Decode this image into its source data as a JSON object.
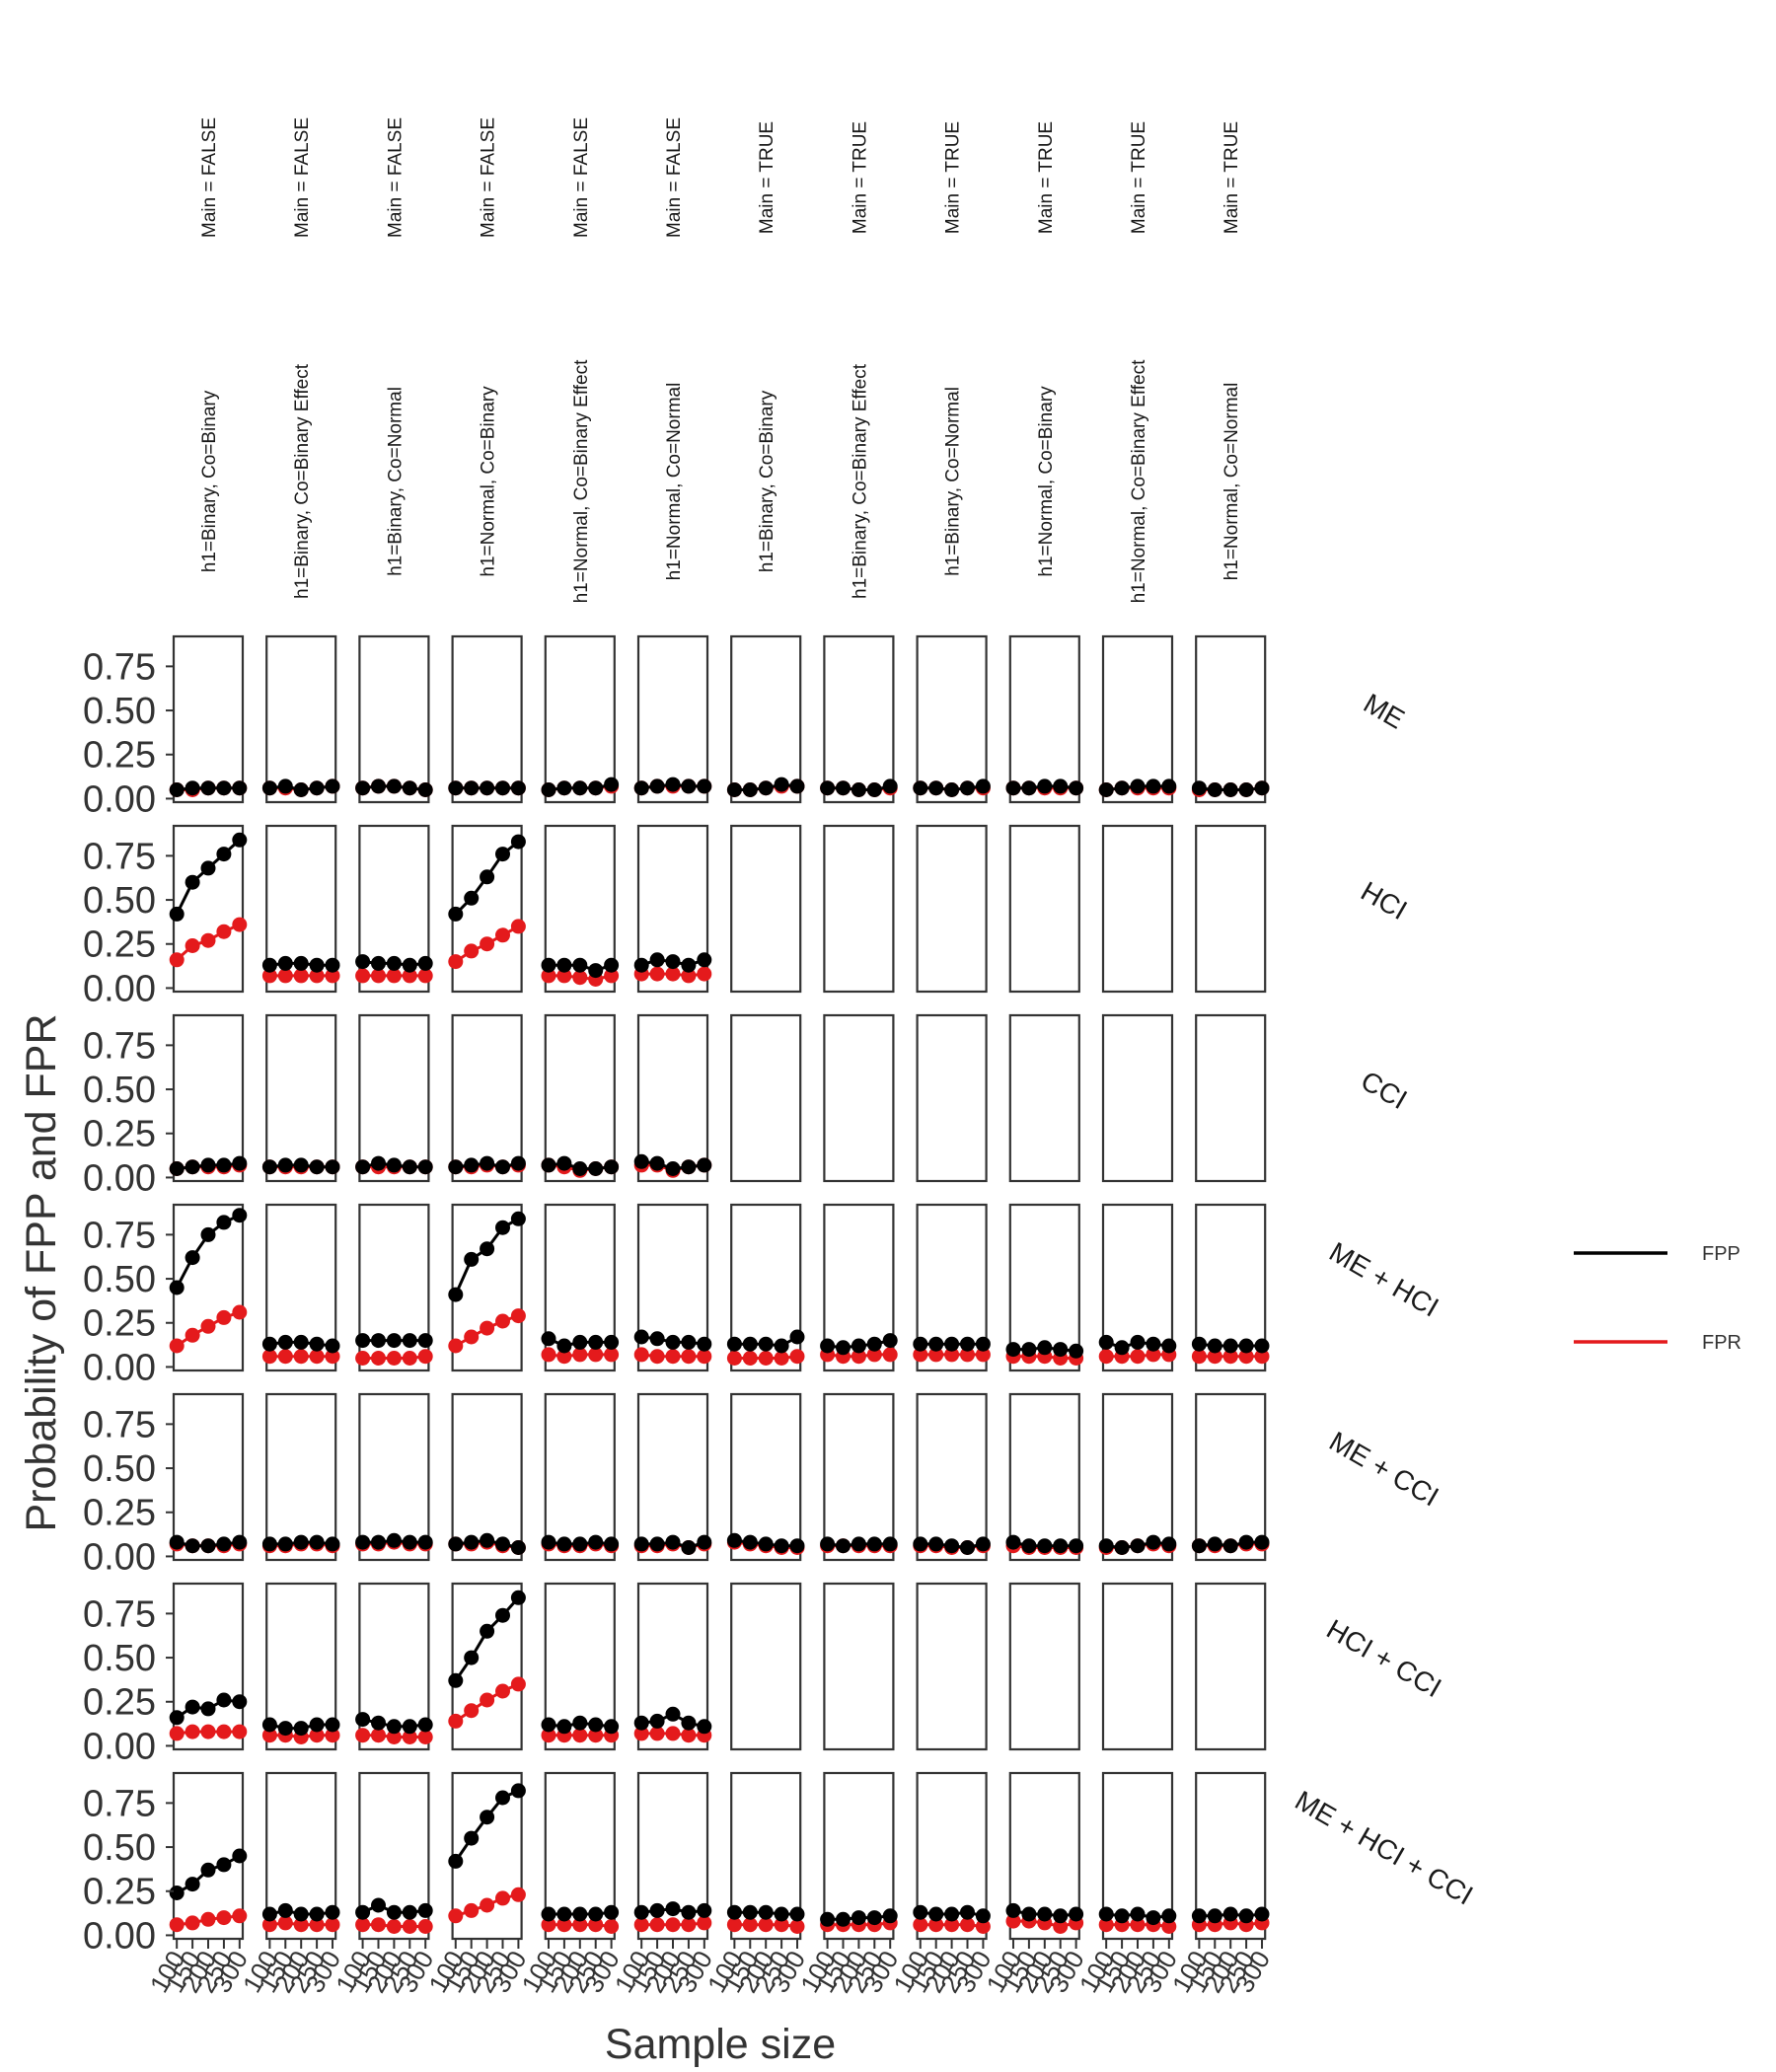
{
  "chart_data": {
    "type": "line",
    "xlabel": "Sample size",
    "ylabel": "Probability of FPP and FPR",
    "x_ticks": [
      100,
      150,
      200,
      250,
      300
    ],
    "x_tick_labels": [
      "100",
      "150",
      "200",
      "250",
      "300"
    ],
    "y_ticks": [
      0,
      0.25,
      0.5,
      0.75
    ],
    "y_tick_labels": [
      "0.00",
      "0.25",
      "0.50",
      "0.75"
    ],
    "xlim": [
      90,
      310
    ],
    "ylim": [
      -0.02,
      0.92
    ],
    "legend_position": "right",
    "legend": [
      {
        "name": "FPP",
        "color": "#000000"
      },
      {
        "name": "FPR",
        "color": "#e41a1c"
      }
    ],
    "col_facets_top": [
      "Main = FALSE",
      "Main = FALSE",
      "Main = FALSE",
      "Main = FALSE",
      "Main = FALSE",
      "Main = FALSE",
      "Main = TRUE",
      "Main = TRUE",
      "Main = TRUE",
      "Main = TRUE",
      "Main = TRUE",
      "Main = TRUE"
    ],
    "col_facets_bottom": [
      "h1=Binary, Co=Binary",
      "h1=Binary, Co=Binary Effect",
      "h1=Binary, Co=Normal",
      "h1=Normal, Co=Binary",
      "h1=Normal, Co=Binary Effect",
      "h1=Normal, Co=Normal",
      "h1=Binary, Co=Binary",
      "h1=Binary, Co=Binary Effect",
      "h1=Binary, Co=Normal",
      "h1=Normal, Co=Binary",
      "h1=Normal, Co=Binary Effect",
      "h1=Normal, Co=Normal"
    ],
    "row_facets": [
      "ME",
      "HCI",
      "CCI",
      "ME + HCI",
      "ME + CCI",
      "HCI + CCI",
      "ME + HCI + CCI"
    ],
    "x": [
      100,
      150,
      200,
      250,
      300
    ],
    "panels": [
      [
        {
          "FPP": [
            0.05,
            0.06,
            0.06,
            0.06,
            0.06
          ],
          "FPR": [
            0.05,
            0.05,
            0.06,
            0.06,
            0.06
          ]
        },
        {
          "FPP": [
            0.06,
            0.07,
            0.05,
            0.06,
            0.07
          ],
          "FPR": [
            0.06,
            0.06,
            0.05,
            0.06,
            0.07
          ]
        },
        {
          "FPP": [
            0.06,
            0.07,
            0.07,
            0.06,
            0.05
          ],
          "FPR": [
            0.06,
            0.07,
            0.07,
            0.06,
            0.05
          ]
        },
        {
          "FPP": [
            0.06,
            0.06,
            0.06,
            0.06,
            0.06
          ],
          "FPR": [
            0.06,
            0.06,
            0.06,
            0.06,
            0.06
          ]
        },
        {
          "FPP": [
            0.05,
            0.06,
            0.06,
            0.06,
            0.08
          ],
          "FPR": [
            0.05,
            0.06,
            0.06,
            0.06,
            0.07
          ]
        },
        {
          "FPP": [
            0.06,
            0.07,
            0.08,
            0.07,
            0.07
          ],
          "FPR": [
            0.06,
            0.07,
            0.07,
            0.07,
            0.07
          ]
        },
        {
          "FPP": [
            0.05,
            0.05,
            0.06,
            0.08,
            0.07
          ],
          "FPR": [
            0.05,
            0.05,
            0.06,
            0.07,
            0.07
          ]
        },
        {
          "FPP": [
            0.06,
            0.06,
            0.05,
            0.05,
            0.07
          ],
          "FPR": [
            0.06,
            0.06,
            0.05,
            0.05,
            0.06
          ]
        },
        {
          "FPP": [
            0.06,
            0.06,
            0.05,
            0.06,
            0.07
          ],
          "FPR": [
            0.06,
            0.06,
            0.05,
            0.06,
            0.06
          ]
        },
        {
          "FPP": [
            0.06,
            0.06,
            0.07,
            0.07,
            0.06
          ],
          "FPR": [
            0.06,
            0.06,
            0.06,
            0.06,
            0.06
          ]
        },
        {
          "FPP": [
            0.05,
            0.06,
            0.07,
            0.07,
            0.07
          ],
          "FPR": [
            0.05,
            0.06,
            0.06,
            0.06,
            0.06
          ]
        },
        {
          "FPP": [
            0.06,
            0.05,
            0.05,
            0.05,
            0.06
          ],
          "FPR": [
            0.05,
            0.05,
            0.05,
            0.05,
            0.06
          ]
        }
      ],
      [
        {
          "FPP": [
            0.42,
            0.6,
            0.68,
            0.76,
            0.84
          ],
          "FPR": [
            0.16,
            0.24,
            0.27,
            0.32,
            0.36
          ]
        },
        {
          "FPP": [
            0.13,
            0.14,
            0.14,
            0.13,
            0.13
          ],
          "FPR": [
            0.07,
            0.07,
            0.07,
            0.07,
            0.07
          ]
        },
        {
          "FPP": [
            0.15,
            0.14,
            0.14,
            0.13,
            0.14
          ],
          "FPR": [
            0.07,
            0.07,
            0.07,
            0.07,
            0.07
          ]
        },
        {
          "FPP": [
            0.42,
            0.51,
            0.63,
            0.76,
            0.83
          ],
          "FPR": [
            0.15,
            0.21,
            0.25,
            0.3,
            0.35
          ]
        },
        {
          "FPP": [
            0.13,
            0.13,
            0.13,
            0.1,
            0.13
          ],
          "FPR": [
            0.07,
            0.07,
            0.06,
            0.05,
            0.07
          ]
        },
        {
          "FPP": [
            0.13,
            0.16,
            0.15,
            0.13,
            0.16
          ],
          "FPR": [
            0.08,
            0.08,
            0.08,
            0.07,
            0.08
          ]
        },
        null,
        null,
        null,
        null,
        null,
        null
      ],
      [
        {
          "FPP": [
            0.05,
            0.06,
            0.07,
            0.07,
            0.08
          ],
          "FPR": [
            0.05,
            0.06,
            0.06,
            0.06,
            0.07
          ]
        },
        {
          "FPP": [
            0.06,
            0.07,
            0.07,
            0.06,
            0.06
          ],
          "FPR": [
            0.06,
            0.06,
            0.06,
            0.06,
            0.06
          ]
        },
        {
          "FPP": [
            0.06,
            0.08,
            0.07,
            0.06,
            0.06
          ],
          "FPR": [
            0.06,
            0.06,
            0.06,
            0.06,
            0.06
          ]
        },
        {
          "FPP": [
            0.06,
            0.07,
            0.08,
            0.06,
            0.08
          ],
          "FPR": [
            0.06,
            0.06,
            0.07,
            0.06,
            0.07
          ]
        },
        {
          "FPP": [
            0.07,
            0.08,
            0.05,
            0.05,
            0.06
          ],
          "FPR": [
            0.07,
            0.06,
            0.04,
            0.05,
            0.06
          ]
        },
        {
          "FPP": [
            0.09,
            0.08,
            0.05,
            0.06,
            0.07
          ],
          "FPR": [
            0.07,
            0.07,
            0.04,
            0.06,
            0.07
          ]
        },
        null,
        null,
        null,
        null,
        null,
        null
      ],
      [
        {
          "FPP": [
            0.45,
            0.62,
            0.75,
            0.82,
            0.86
          ],
          "FPR": [
            0.12,
            0.18,
            0.23,
            0.28,
            0.31
          ]
        },
        {
          "FPP": [
            0.13,
            0.14,
            0.14,
            0.13,
            0.12
          ],
          "FPR": [
            0.06,
            0.06,
            0.06,
            0.06,
            0.06
          ]
        },
        {
          "FPP": [
            0.15,
            0.15,
            0.15,
            0.15,
            0.15
          ],
          "FPR": [
            0.05,
            0.05,
            0.05,
            0.05,
            0.06
          ]
        },
        {
          "FPP": [
            0.41,
            0.61,
            0.67,
            0.79,
            0.84
          ],
          "FPR": [
            0.12,
            0.17,
            0.22,
            0.26,
            0.29
          ]
        },
        {
          "FPP": [
            0.16,
            0.12,
            0.14,
            0.14,
            0.14
          ],
          "FPR": [
            0.07,
            0.06,
            0.07,
            0.07,
            0.07
          ]
        },
        {
          "FPP": [
            0.17,
            0.16,
            0.14,
            0.14,
            0.13
          ],
          "FPR": [
            0.07,
            0.06,
            0.06,
            0.06,
            0.06
          ]
        },
        {
          "FPP": [
            0.13,
            0.13,
            0.13,
            0.12,
            0.17
          ],
          "FPR": [
            0.05,
            0.05,
            0.05,
            0.05,
            0.06
          ]
        },
        {
          "FPP": [
            0.12,
            0.11,
            0.12,
            0.13,
            0.15
          ],
          "FPR": [
            0.07,
            0.06,
            0.06,
            0.07,
            0.07
          ]
        },
        {
          "FPP": [
            0.13,
            0.13,
            0.13,
            0.13,
            0.13
          ],
          "FPR": [
            0.07,
            0.07,
            0.07,
            0.07,
            0.07
          ]
        },
        {
          "FPP": [
            0.1,
            0.1,
            0.11,
            0.1,
            0.09
          ],
          "FPR": [
            0.06,
            0.06,
            0.06,
            0.05,
            0.05
          ]
        },
        {
          "FPP": [
            0.14,
            0.11,
            0.14,
            0.13,
            0.12
          ],
          "FPR": [
            0.06,
            0.06,
            0.06,
            0.07,
            0.07
          ]
        },
        {
          "FPP": [
            0.13,
            0.12,
            0.12,
            0.12,
            0.12
          ],
          "FPR": [
            0.06,
            0.06,
            0.06,
            0.06,
            0.06
          ]
        }
      ],
      [
        {
          "FPP": [
            0.08,
            0.06,
            0.06,
            0.07,
            0.08
          ],
          "FPR": [
            0.07,
            0.06,
            0.06,
            0.06,
            0.07
          ]
        },
        {
          "FPP": [
            0.07,
            0.07,
            0.08,
            0.08,
            0.07
          ],
          "FPR": [
            0.06,
            0.06,
            0.07,
            0.07,
            0.06
          ]
        },
        {
          "FPP": [
            0.08,
            0.08,
            0.09,
            0.08,
            0.08
          ],
          "FPR": [
            0.07,
            0.07,
            0.08,
            0.07,
            0.07
          ]
        },
        {
          "FPP": [
            0.07,
            0.08,
            0.09,
            0.07,
            0.05
          ],
          "FPR": [
            0.07,
            0.07,
            0.08,
            0.06,
            0.05
          ]
        },
        {
          "FPP": [
            0.08,
            0.07,
            0.07,
            0.08,
            0.07
          ],
          "FPR": [
            0.07,
            0.06,
            0.06,
            0.07,
            0.06
          ]
        },
        {
          "FPP": [
            0.07,
            0.07,
            0.08,
            0.05,
            0.08
          ],
          "FPR": [
            0.06,
            0.06,
            0.07,
            0.05,
            0.07
          ]
        },
        {
          "FPP": [
            0.09,
            0.08,
            0.07,
            0.06,
            0.06
          ],
          "FPR": [
            0.08,
            0.07,
            0.06,
            0.05,
            0.05
          ]
        },
        {
          "FPP": [
            0.07,
            0.06,
            0.07,
            0.07,
            0.07
          ],
          "FPR": [
            0.06,
            0.06,
            0.06,
            0.06,
            0.06
          ]
        },
        {
          "FPP": [
            0.07,
            0.07,
            0.06,
            0.05,
            0.07
          ],
          "FPR": [
            0.06,
            0.06,
            0.05,
            0.05,
            0.06
          ]
        },
        {
          "FPP": [
            0.08,
            0.06,
            0.06,
            0.06,
            0.06
          ],
          "FPR": [
            0.06,
            0.05,
            0.05,
            0.05,
            0.05
          ]
        },
        {
          "FPP": [
            0.06,
            0.05,
            0.06,
            0.08,
            0.07
          ],
          "FPR": [
            0.05,
            0.05,
            0.06,
            0.07,
            0.06
          ]
        },
        {
          "FPP": [
            0.06,
            0.07,
            0.06,
            0.08,
            0.08
          ],
          "FPR": [
            0.06,
            0.06,
            0.06,
            0.07,
            0.07
          ]
        }
      ],
      [
        {
          "FPP": [
            0.16,
            0.22,
            0.21,
            0.26,
            0.25
          ],
          "FPR": [
            0.07,
            0.08,
            0.08,
            0.08,
            0.08
          ]
        },
        {
          "FPP": [
            0.12,
            0.1,
            0.1,
            0.12,
            0.12
          ],
          "FPR": [
            0.06,
            0.06,
            0.05,
            0.06,
            0.06
          ]
        },
        {
          "FPP": [
            0.15,
            0.13,
            0.11,
            0.11,
            0.12
          ],
          "FPR": [
            0.06,
            0.06,
            0.05,
            0.05,
            0.05
          ]
        },
        {
          "FPP": [
            0.37,
            0.5,
            0.65,
            0.74,
            0.84
          ],
          "FPR": [
            0.14,
            0.2,
            0.26,
            0.31,
            0.35
          ]
        },
        {
          "FPP": [
            0.12,
            0.11,
            0.13,
            0.12,
            0.11
          ],
          "FPR": [
            0.06,
            0.06,
            0.06,
            0.06,
            0.06
          ]
        },
        {
          "FPP": [
            0.13,
            0.14,
            0.18,
            0.13,
            0.11
          ],
          "FPR": [
            0.07,
            0.07,
            0.07,
            0.06,
            0.06
          ]
        },
        null,
        null,
        null,
        null,
        null,
        null
      ],
      [
        {
          "FPP": [
            0.24,
            0.29,
            0.37,
            0.4,
            0.45
          ],
          "FPR": [
            0.06,
            0.07,
            0.09,
            0.1,
            0.11
          ]
        },
        {
          "FPP": [
            0.12,
            0.14,
            0.12,
            0.12,
            0.13
          ],
          "FPR": [
            0.06,
            0.07,
            0.06,
            0.06,
            0.06
          ]
        },
        {
          "FPP": [
            0.13,
            0.17,
            0.13,
            0.13,
            0.14
          ],
          "FPR": [
            0.06,
            0.06,
            0.05,
            0.05,
            0.05
          ]
        },
        {
          "FPP": [
            0.42,
            0.55,
            0.67,
            0.78,
            0.82
          ],
          "FPR": [
            0.11,
            0.14,
            0.17,
            0.21,
            0.23
          ]
        },
        {
          "FPP": [
            0.12,
            0.12,
            0.12,
            0.12,
            0.13
          ],
          "FPR": [
            0.06,
            0.06,
            0.06,
            0.06,
            0.05
          ]
        },
        {
          "FPP": [
            0.13,
            0.14,
            0.15,
            0.13,
            0.14
          ],
          "FPR": [
            0.06,
            0.06,
            0.06,
            0.06,
            0.07
          ]
        },
        {
          "FPP": [
            0.13,
            0.13,
            0.13,
            0.12,
            0.12
          ],
          "FPR": [
            0.06,
            0.06,
            0.06,
            0.06,
            0.05
          ]
        },
        {
          "FPP": [
            0.09,
            0.09,
            0.1,
            0.1,
            0.11
          ],
          "FPR": [
            0.06,
            0.06,
            0.06,
            0.06,
            0.07
          ]
        },
        {
          "FPP": [
            0.13,
            0.12,
            0.12,
            0.13,
            0.11
          ],
          "FPR": [
            0.06,
            0.06,
            0.06,
            0.06,
            0.05
          ]
        },
        {
          "FPP": [
            0.14,
            0.12,
            0.12,
            0.11,
            0.12
          ],
          "FPR": [
            0.08,
            0.08,
            0.07,
            0.05,
            0.07
          ]
        },
        {
          "FPP": [
            0.12,
            0.11,
            0.12,
            0.1,
            0.11
          ],
          "FPR": [
            0.06,
            0.06,
            0.06,
            0.06,
            0.05
          ]
        },
        {
          "FPP": [
            0.11,
            0.11,
            0.12,
            0.11,
            0.12
          ],
          "FPR": [
            0.06,
            0.06,
            0.07,
            0.06,
            0.07
          ]
        }
      ]
    ]
  }
}
